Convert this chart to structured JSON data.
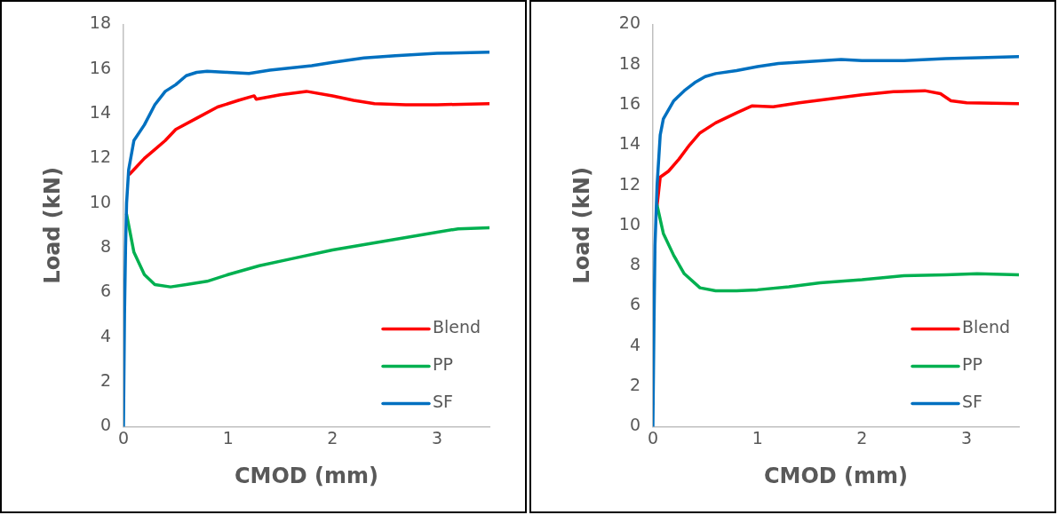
{
  "chart_data": [
    {
      "type": "line",
      "xlabel": "CMOD (mm)",
      "ylabel": "Load (kN)",
      "xlim": [
        0,
        3.5
      ],
      "xticks": [
        0,
        1,
        2,
        3
      ],
      "ylim": [
        0,
        18
      ],
      "yticks": [
        0,
        2,
        4,
        6,
        8,
        10,
        12,
        14,
        16,
        18
      ],
      "grid": false,
      "legend": "bottom right",
      "marker": "none",
      "line_style": "solid",
      "series": [
        {
          "name": "Blend",
          "color": "#ff0000",
          "x": [
            0.06,
            0.1,
            0.2,
            0.3,
            0.4,
            0.5,
            0.7,
            0.9,
            1.1,
            1.25,
            1.27,
            1.5,
            1.75,
            2.0,
            2.2,
            2.4,
            2.7,
            3.0,
            3.5
          ],
          "values": [
            11.3,
            11.5,
            12,
            12.4,
            12.8,
            13.3,
            13.8,
            14.3,
            14.6,
            14.8,
            14.65,
            14.85,
            15,
            14.8,
            14.6,
            14.45,
            14.4,
            14.4,
            14.45
          ]
        },
        {
          "name": "PP",
          "color": "#00b050",
          "x": [
            0.03,
            0.1,
            0.2,
            0.3,
            0.45,
            0.6,
            0.8,
            1.0,
            1.3,
            1.6,
            2.0,
            2.5,
            3.0,
            3.2,
            3.5
          ],
          "values": [
            9.5,
            7.8,
            6.8,
            6.35,
            6.25,
            6.35,
            6.5,
            6.8,
            7.2,
            7.5,
            7.9,
            8.3,
            8.7,
            8.85,
            8.9
          ]
        },
        {
          "name": "SF",
          "color": "#0070c0",
          "x": [
            0,
            0.01,
            0.02,
            0.03,
            0.05,
            0.1,
            0.2,
            0.3,
            0.4,
            0.5,
            0.6,
            0.7,
            0.8,
            1.0,
            1.2,
            1.4,
            1.6,
            1.8,
            2.0,
            2.3,
            2.6,
            3.0,
            3.5
          ],
          "values": [
            0,
            5,
            8,
            10,
            11.5,
            12.8,
            13.5,
            14.4,
            15,
            15.3,
            15.7,
            15.85,
            15.9,
            15.85,
            15.8,
            15.95,
            16.05,
            16.15,
            16.3,
            16.5,
            16.6,
            16.7,
            16.75
          ]
        }
      ]
    },
    {
      "type": "line",
      "xlabel": "CMOD (mm)",
      "ylabel": "Load (kN)",
      "xlim": [
        0,
        3.5
      ],
      "xticks": [
        0,
        1,
        2,
        3
      ],
      "ylim": [
        0,
        20
      ],
      "yticks": [
        0,
        2,
        4,
        6,
        8,
        10,
        12,
        14,
        16,
        18,
        20
      ],
      "grid": false,
      "legend": "bottom right",
      "marker": "none",
      "line_style": "solid",
      "series": [
        {
          "name": "Blend",
          "color": "#ff0000",
          "x": [
            0.04,
            0.07,
            0.15,
            0.25,
            0.35,
            0.45,
            0.6,
            0.8,
            0.95,
            1.15,
            1.4,
            1.7,
            2.0,
            2.3,
            2.6,
            2.75,
            2.85,
            3.0,
            3.5
          ],
          "values": [
            11,
            12.4,
            12.7,
            13.3,
            14,
            14.6,
            15.1,
            15.6,
            15.95,
            15.9,
            16.1,
            16.3,
            16.5,
            16.65,
            16.7,
            16.55,
            16.2,
            16.1,
            16.05
          ]
        },
        {
          "name": "PP",
          "color": "#00b050",
          "x": [
            0.04,
            0.1,
            0.2,
            0.3,
            0.45,
            0.6,
            0.8,
            1.0,
            1.3,
            1.6,
            2.0,
            2.4,
            2.8,
            3.1,
            3.5
          ],
          "values": [
            11,
            9.6,
            8.5,
            7.6,
            6.9,
            6.75,
            6.75,
            6.8,
            6.95,
            7.15,
            7.3,
            7.5,
            7.55,
            7.6,
            7.55
          ]
        },
        {
          "name": "SF",
          "color": "#0070c0",
          "x": [
            0,
            0.01,
            0.02,
            0.04,
            0.07,
            0.1,
            0.2,
            0.3,
            0.4,
            0.5,
            0.6,
            0.8,
            1.0,
            1.2,
            1.5,
            1.8,
            2.0,
            2.4,
            2.8,
            3.2,
            3.5
          ],
          "values": [
            0,
            5,
            9,
            12,
            14.5,
            15.3,
            16.2,
            16.7,
            17.1,
            17.4,
            17.55,
            17.7,
            17.9,
            18.05,
            18.15,
            18.25,
            18.2,
            18.2,
            18.3,
            18.35,
            18.4
          ]
        }
      ]
    }
  ]
}
